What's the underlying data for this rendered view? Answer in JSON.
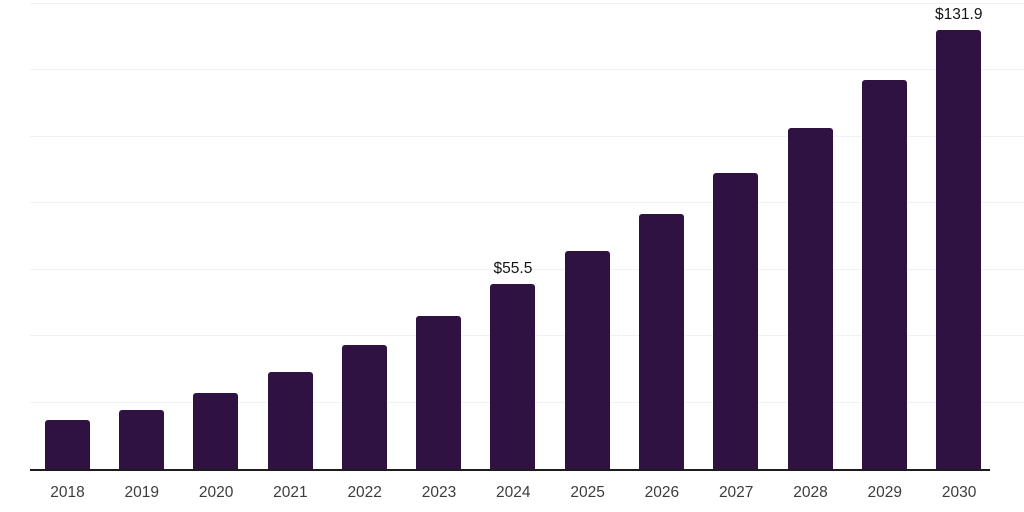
{
  "page": {
    "background": "#ffffff"
  },
  "chart_data": {
    "type": "bar",
    "title": "",
    "xlabel": "",
    "ylabel": "",
    "categories": [
      "2018",
      "2019",
      "2020",
      "2021",
      "2022",
      "2023",
      "2024",
      "2025",
      "2026",
      "2027",
      "2028",
      "2029",
      "2030"
    ],
    "values": [
      14.6,
      17.8,
      22.8,
      29.1,
      37.4,
      46.1,
      55.5,
      65.7,
      76.8,
      89.0,
      102.5,
      117.1,
      131.9
    ],
    "data_labels": [
      "",
      "",
      "",
      "",
      "",
      "",
      "$55.5",
      "",
      "",
      "",
      "",
      "",
      "$131.9"
    ],
    "ylim": [
      0,
      140
    ],
    "gridline_values": [
      20,
      40,
      60,
      80,
      100,
      120,
      140
    ],
    "grid": "horizontal",
    "legend_position": "none",
    "y_tick_labels_visible": false,
    "colors": {
      "bar": "#2f1142",
      "axis": "#1c1c1c",
      "gridline": "#f1f1f4",
      "x_tick_label": "#3c3c3c",
      "data_label": "#141414",
      "background": "#ffffff"
    }
  }
}
